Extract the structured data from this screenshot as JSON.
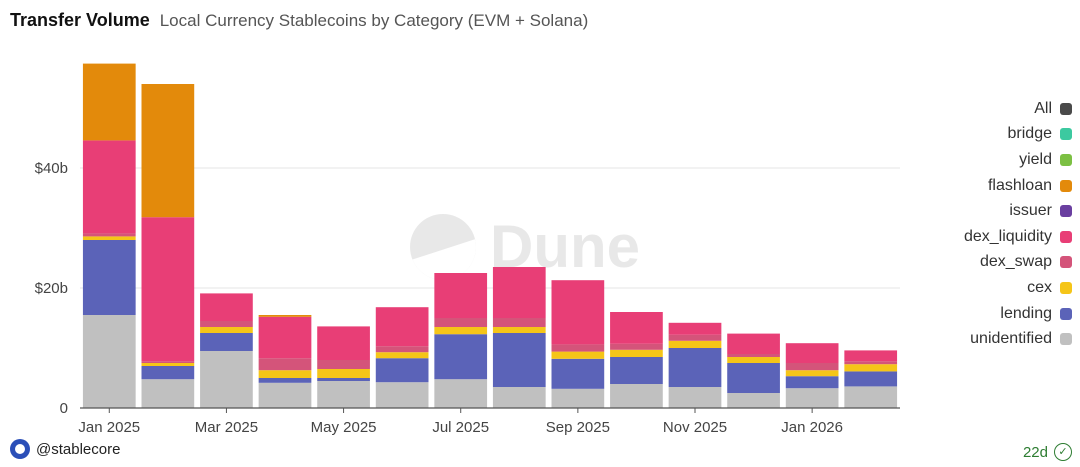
{
  "header": {
    "title": "Transfer Volume",
    "subtitle": "Local Currency Stablecoins by Category (EVM + Solana)"
  },
  "legend": [
    {
      "label": "All",
      "color": "#4a4a4a"
    },
    {
      "label": "bridge",
      "color": "#3cc9a0"
    },
    {
      "label": "yield",
      "color": "#7cc043"
    },
    {
      "label": "flashloan",
      "color": "#e38a0b"
    },
    {
      "label": "issuer",
      "color": "#6a3fa0"
    },
    {
      "label": "dex_liquidity",
      "color": "#e83e76"
    },
    {
      "label": "dex_swap",
      "color": "#d4547a"
    },
    {
      "label": "cex",
      "color": "#f5c518"
    },
    {
      "label": "lending",
      "color": "#5b63b8"
    },
    {
      "label": "unidentified",
      "color": "#c0c0c0"
    }
  ],
  "footer": {
    "source": "@stablecore",
    "badge": "22d"
  },
  "watermark": "Dune",
  "chart_data": {
    "type": "bar",
    "stacked": true,
    "y_unit": "billion USD",
    "ylim": [
      0,
      60
    ],
    "y_ticks": [
      {
        "value": 0,
        "label": "0"
      },
      {
        "value": 20,
        "label": "$20b"
      },
      {
        "value": 40,
        "label": "$40b"
      }
    ],
    "x_tick_labels": [
      {
        "index": 0,
        "label": "Jan 2025"
      },
      {
        "index": 2,
        "label": "Mar 2025"
      },
      {
        "index": 4,
        "label": "May 2025"
      },
      {
        "index": 6,
        "label": "Jul 2025"
      },
      {
        "index": 8,
        "label": "Sep 2025"
      },
      {
        "index": 10,
        "label": "Nov 2025"
      },
      {
        "index": 12,
        "label": "Jan 2026"
      }
    ],
    "categories": [
      "2025-01",
      "2025-02",
      "2025-03",
      "2025-04",
      "2025-05",
      "2025-06",
      "2025-07",
      "2025-08",
      "2025-09",
      "2025-10",
      "2025-11",
      "2025-12",
      "2026-01",
      "2026-02"
    ],
    "series": [
      {
        "name": "unidentified",
        "color": "#c0c0c0",
        "values": [
          15.5,
          4.8,
          9.5,
          4.2,
          4.5,
          4.3,
          4.8,
          3.5,
          3.2,
          4.0,
          3.5,
          2.5,
          3.3,
          3.6
        ]
      },
      {
        "name": "lending",
        "color": "#5b63b8",
        "values": [
          12.5,
          2.2,
          3.0,
          0.8,
          0.5,
          4.0,
          7.5,
          9.0,
          5.0,
          4.5,
          6.5,
          5.0,
          2.0,
          2.5
        ]
      },
      {
        "name": "cex",
        "color": "#f5c518",
        "values": [
          0.6,
          0.5,
          1.0,
          1.3,
          1.5,
          1.0,
          1.2,
          1.0,
          1.2,
          1.2,
          1.2,
          1.0,
          1.0,
          1.2
        ]
      },
      {
        "name": "dex_swap",
        "color": "#d4547a",
        "values": [
          0.5,
          0.3,
          1.0,
          2.0,
          1.5,
          1.0,
          1.5,
          1.5,
          1.2,
          1.0,
          1.0,
          0.5,
          1.2,
          0.5
        ]
      },
      {
        "name": "dex_liquidity",
        "color": "#e83e76",
        "values": [
          15.5,
          24.0,
          4.6,
          6.9,
          5.6,
          6.5,
          7.5,
          8.5,
          10.7,
          5.3,
          2.0,
          3.4,
          3.3,
          1.8
        ]
      },
      {
        "name": "flashloan",
        "color": "#e38a0b",
        "values": [
          12.8,
          22.2,
          0.0,
          0.3,
          0.0,
          0.0,
          0.0,
          0.0,
          0.0,
          0.0,
          0.0,
          0.0,
          0.0,
          0.0
        ]
      }
    ]
  }
}
